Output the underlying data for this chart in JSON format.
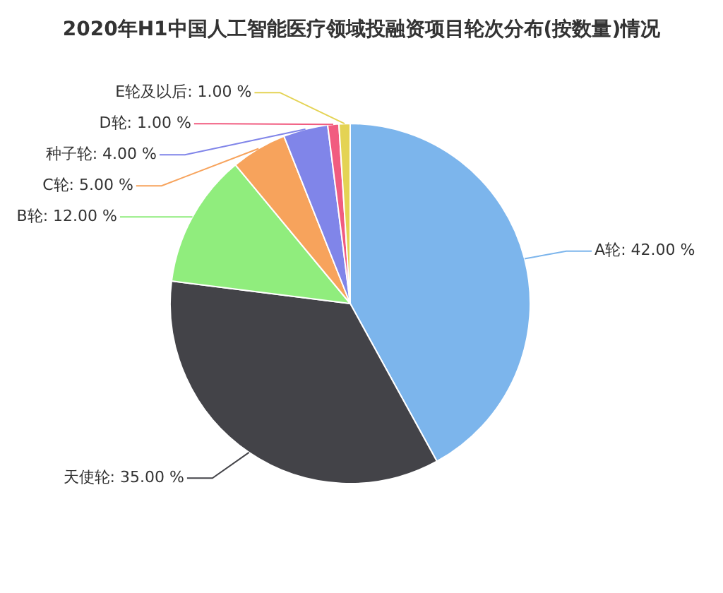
{
  "chart_data": {
    "type": "pie",
    "title": "2020年H1中国人工智能医疗领域投融资项目轮次分布(按数量)情况",
    "categories": [
      "A轮",
      "天使轮",
      "B轮",
      "C轮",
      "种子轮",
      "D轮",
      "E轮及以后"
    ],
    "values": [
      42,
      35,
      12,
      5,
      4,
      1,
      1
    ],
    "value_labels": [
      "42.00 %",
      "35.00 %",
      "12.00 %",
      "5.00 %",
      "4.00 %",
      "1.00 %",
      "1.00 %"
    ],
    "colors": [
      "#7cb5ec",
      "#434348",
      "#90ed7d",
      "#f7a35c",
      "#8085e9",
      "#f15c80",
      "#e4d354"
    ],
    "legend": false
  }
}
